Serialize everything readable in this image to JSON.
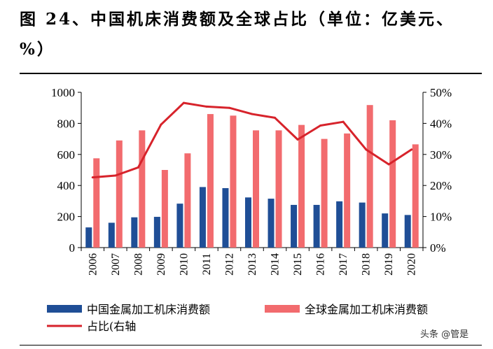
{
  "title": "图 24、中国机床消费额及全球占比（单位：亿美元、%）",
  "watermark": "头条 @管是",
  "chart_data": {
    "type": "bar",
    "categories": [
      "2006",
      "2007",
      "2008",
      "2009",
      "2010",
      "2011",
      "2012",
      "2013",
      "2014",
      "2015",
      "2016",
      "2017",
      "2018",
      "2019",
      "2020"
    ],
    "series": [
      {
        "name": "中国金属加工机床消费额",
        "kind": "bar",
        "axis": "left",
        "color": "#1f4e96",
        "values": [
          130,
          160,
          195,
          198,
          283,
          390,
          383,
          323,
          315,
          275,
          275,
          298,
          290,
          220,
          210
        ]
      },
      {
        "name": "全球金属加工机床消费额",
        "kind": "bar",
        "axis": "left",
        "color": "#f26b6e",
        "values": [
          575,
          690,
          755,
          500,
          607,
          860,
          850,
          755,
          755,
          790,
          700,
          735,
          918,
          820,
          665
        ]
      },
      {
        "name": "占比(右轴",
        "kind": "line",
        "axis": "right",
        "color": "#d7232b",
        "values": [
          22.6,
          23.2,
          25.8,
          39.6,
          46.6,
          45.4,
          45.0,
          43.0,
          41.8,
          34.8,
          39.3,
          40.5,
          31.6,
          26.8,
          31.6
        ]
      }
    ],
    "left_axis": {
      "ylim": [
        0,
        1000
      ],
      "ticks": [
        "0",
        "200",
        "400",
        "600",
        "800",
        "1000"
      ]
    },
    "right_axis": {
      "ylim": [
        0,
        50
      ],
      "ticks": [
        "0%",
        "10%",
        "20%",
        "30%",
        "40%",
        "50%"
      ]
    },
    "legend_position": "bottom",
    "grid": false
  }
}
